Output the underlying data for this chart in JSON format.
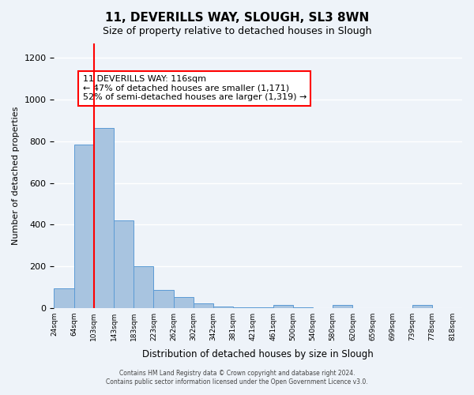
{
  "title": "11, DEVERILLS WAY, SLOUGH, SL3 8WN",
  "subtitle": "Size of property relative to detached houses in Slough",
  "xlabel": "Distribution of detached houses by size in Slough",
  "ylabel": "Number of detached properties",
  "bar_color": "#a8c4e0",
  "bar_edge_color": "#5b9bd5",
  "bg_color": "#eef3f9",
  "grid_color": "#ffffff",
  "annotation_box_color": "#ffffff",
  "annotation_box_edge": "#cc0000",
  "red_line_x": 116,
  "property_line": "11 DEVERILLS WAY: 116sqm",
  "annotation_line2": "← 47% of detached houses are smaller (1,171)",
  "annotation_line3": "52% of semi-detached houses are larger (1,319) →",
  "footer_line1": "Contains HM Land Registry data © Crown copyright and database right 2024.",
  "footer_line2": "Contains public sector information licensed under the Open Government Licence v3.0.",
  "bin_edges": [
    24,
    64,
    103,
    143,
    183,
    223,
    262,
    302,
    342,
    381,
    421,
    461,
    500,
    540,
    580,
    620,
    659,
    699,
    739,
    778,
    818
  ],
  "bin_labels": [
    "24sqm",
    "64sqm",
    "103sqm",
    "143sqm",
    "183sqm",
    "223sqm",
    "262sqm",
    "302sqm",
    "342sqm",
    "381sqm",
    "421sqm",
    "461sqm",
    "500sqm",
    "540sqm",
    "580sqm",
    "620sqm",
    "659sqm",
    "699sqm",
    "739sqm",
    "778sqm",
    "818sqm"
  ],
  "counts": [
    95,
    785,
    865,
    420,
    200,
    85,
    52,
    22,
    5,
    3,
    2,
    14,
    2,
    0,
    14,
    0,
    0,
    0,
    14,
    0,
    0
  ],
  "ylim": [
    0,
    1270
  ],
  "yticks": [
    0,
    200,
    400,
    600,
    800,
    1000,
    1200
  ]
}
